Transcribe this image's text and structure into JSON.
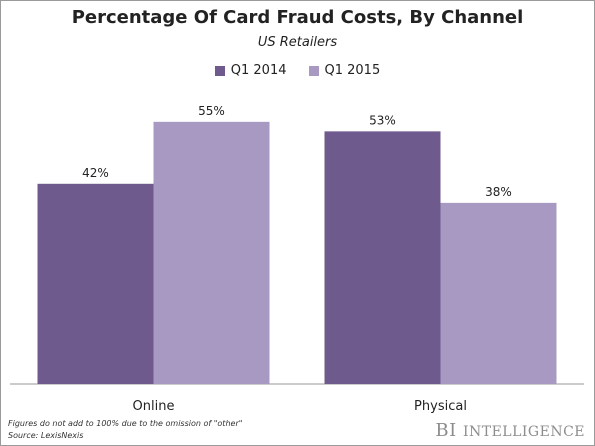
{
  "chart_data": {
    "type": "bar",
    "title": "Percentage Of Card Fraud Costs, By Channel",
    "subtitle": "US Retailers",
    "categories": [
      "Online",
      "Physical"
    ],
    "series": [
      {
        "name": "Q1 2014",
        "values": [
          42,
          53
        ],
        "labels": [
          "42%",
          "53%"
        ],
        "color": "#6f5a8e"
      },
      {
        "name": "Q1 2015",
        "values": [
          55,
          38
        ],
        "labels": [
          "55%",
          "38%"
        ],
        "color": "#a899c3"
      }
    ],
    "ylim": [
      0,
      60
    ],
    "grid": false,
    "legend_position": "top-center"
  },
  "footnote": "Figures do not add to 100% due to the omission of \"other\"",
  "source": "Source: LexisNexis",
  "brand": {
    "bi": "BI",
    "intelligence": "Intelligence"
  },
  "colors": {
    "axis": "#999999",
    "text": "#222222"
  }
}
